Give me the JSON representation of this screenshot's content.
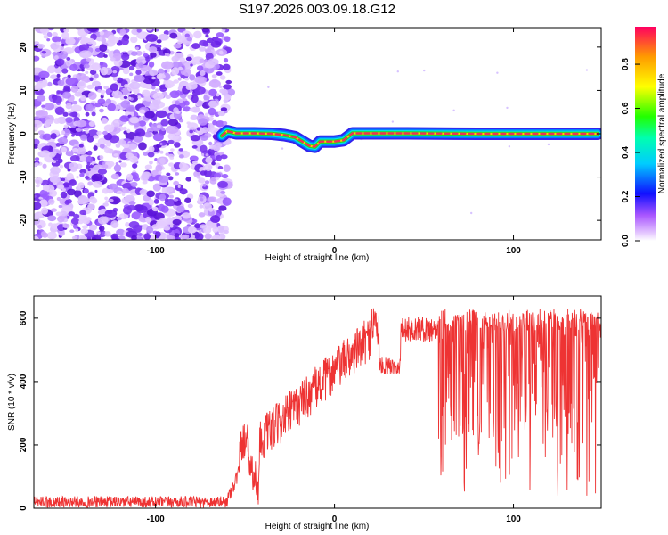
{
  "title": "S197.2026.003.09.18.G12",
  "chart_data": [
    {
      "type": "heatmap",
      "name": "spectrogram",
      "xlabel": "Height of straight line (km)",
      "ylabel": "Frequency (Hz)",
      "xlim": [
        -168,
        149
      ],
      "ylim": [
        -24.5,
        24.5
      ],
      "xticks": [
        -100,
        0,
        100
      ],
      "yticks": [
        20,
        10,
        0,
        -10,
        -20
      ],
      "noise_region_x": [
        -168,
        -62
      ],
      "line_x": [
        -63,
        -60,
        -55,
        -45,
        -35,
        -28,
        -22,
        -18,
        -14,
        -11,
        -8,
        -5,
        0,
        5,
        10,
        20,
        40,
        80,
        120,
        147
      ],
      "line_y": [
        -0.5,
        0.6,
        0.1,
        0.1,
        0.0,
        -0.3,
        -0.8,
        -1.8,
        -2.8,
        -3.0,
        -1.8,
        -1.8,
        -1.8,
        -1.5,
        0.1,
        0.1,
        0.1,
        0.0,
        0.0,
        0.0
      ],
      "colorbar": {
        "label": "Normalized spectral amplitude",
        "range": [
          0,
          0.97
        ],
        "ticks": [
          0.0,
          0.2,
          0.4,
          0.6,
          0.8
        ]
      }
    },
    {
      "type": "line",
      "name": "snr",
      "xlabel": "Height of straight line (km)",
      "ylabel": "SNR (10 * v/v)",
      "xlim": [
        -168,
        149
      ],
      "ylim": [
        0,
        670
      ],
      "xticks": [
        -100,
        0,
        100
      ],
      "yticks": [
        0,
        200,
        400,
        600
      ],
      "color": "#ee3333",
      "segments": [
        {
          "x0": -168,
          "x1": -60,
          "base0": 20,
          "base1": 20,
          "noise": 18
        },
        {
          "x0": -60,
          "x1": -53,
          "base0": 25,
          "base1": 120,
          "noise": 25
        },
        {
          "x0": -53,
          "x1": -48,
          "base0": 190,
          "base1": 240,
          "noise": 60
        },
        {
          "x0": -48,
          "x1": -42,
          "base0": 150,
          "base1": 60,
          "noise": 60
        },
        {
          "x0": -42,
          "x1": 20,
          "base0": 210,
          "base1": 540,
          "noise": 70
        },
        {
          "x0": 20,
          "x1": 25,
          "base0": 600,
          "base1": 560,
          "noise": 70
        },
        {
          "x0": 25,
          "x1": 37,
          "base0": 450,
          "base1": 450,
          "noise": 28
        },
        {
          "x0": 37,
          "x1": 58,
          "base0": 565,
          "base1": 565,
          "noise": 40
        },
        {
          "x0": 58,
          "x1": 149,
          "base0": 500,
          "base1": 500,
          "noise": 200
        }
      ]
    }
  ],
  "colors": {
    "axis": "#000000",
    "snr_line": "#ee3333",
    "ridge_core": "#ee3355",
    "ridge_mid": "#22dd22",
    "ridge_outer": "#00ddee",
    "ridge_edge": "#3322ee",
    "noise": "#7a3ff0"
  }
}
